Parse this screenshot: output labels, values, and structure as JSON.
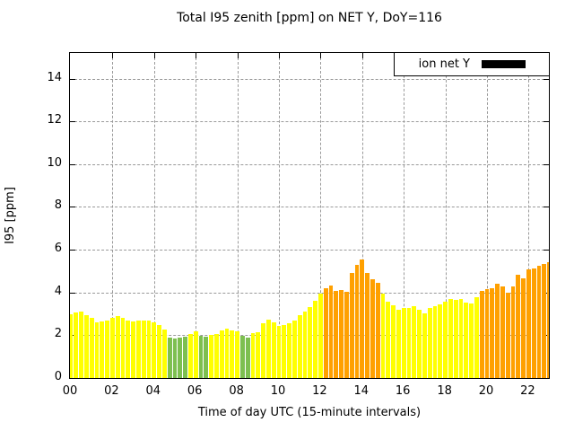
{
  "title": "Total I95 zenith [ppm] on NET Y, DoY=116",
  "legend": {
    "label": "ion net Y",
    "swatch_color": "#000000"
  },
  "axes": {
    "x_label": "Time of day UTC (15-minute intervals)",
    "y_label": "I95 [ppm]",
    "x_tick_labels": [
      "00",
      "02",
      "04",
      "06",
      "08",
      "10",
      "12",
      "14",
      "16",
      "18",
      "20",
      "22"
    ],
    "y_tick_labels": [
      "0",
      "2",
      "4",
      "6",
      "8",
      "10",
      "12",
      "14"
    ]
  },
  "colors": {
    "bar_low": "#7dbf50",
    "bar_mid": "#ffff00",
    "bar_high": "#ffa000",
    "grid": "#9a9a9a",
    "border": "#000000"
  },
  "thresholds": {
    "low_below": 2.0,
    "mid_below": 4.0
  },
  "chart_data": {
    "type": "bar",
    "title": "Total I95 zenith [ppm] on NET Y, DoY=116",
    "xlabel": "Time of day UTC (15-minute intervals)",
    "ylabel": "I95 [ppm]",
    "legend_entries": [
      "ion net Y"
    ],
    "legend_position": "top-right",
    "grid": true,
    "xlim_hours": [
      0,
      23.0
    ],
    "ylim": [
      0,
      15.2
    ],
    "x_step_minutes": 15,
    "x_times": [
      "00:00",
      "00:15",
      "00:30",
      "00:45",
      "01:00",
      "01:15",
      "01:30",
      "01:45",
      "02:00",
      "02:15",
      "02:30",
      "02:45",
      "03:00",
      "03:15",
      "03:30",
      "03:45",
      "04:00",
      "04:15",
      "04:30",
      "04:45",
      "05:00",
      "05:15",
      "05:30",
      "05:45",
      "06:00",
      "06:15",
      "06:30",
      "06:45",
      "07:00",
      "07:15",
      "07:30",
      "07:45",
      "08:00",
      "08:15",
      "08:30",
      "08:45",
      "09:00",
      "09:15",
      "09:30",
      "09:45",
      "10:00",
      "10:15",
      "10:30",
      "10:45",
      "11:00",
      "11:15",
      "11:30",
      "11:45",
      "12:00",
      "12:15",
      "12:30",
      "12:45",
      "13:00",
      "13:15",
      "13:30",
      "13:45",
      "14:00",
      "14:15",
      "14:30",
      "14:45",
      "15:00",
      "15:15",
      "15:30",
      "15:45",
      "16:00",
      "16:15",
      "16:30",
      "16:45",
      "17:00",
      "17:15",
      "17:30",
      "17:45",
      "18:00",
      "18:15",
      "18:30",
      "18:45",
      "19:00",
      "19:15",
      "19:30",
      "19:45",
      "20:00",
      "20:15",
      "20:30",
      "20:45",
      "21:00",
      "21:15",
      "21:30",
      "21:45",
      "22:00",
      "22:15",
      "22:30",
      "22:45",
      "23:00"
    ],
    "values": [
      2.98,
      3.06,
      3.12,
      2.92,
      2.81,
      2.6,
      2.64,
      2.7,
      2.82,
      2.91,
      2.81,
      2.67,
      2.63,
      2.68,
      2.7,
      2.69,
      2.6,
      2.49,
      2.25,
      1.9,
      1.86,
      1.9,
      1.93,
      2.04,
      2.2,
      1.97,
      1.93,
      2.02,
      2.07,
      2.24,
      2.29,
      2.24,
      2.18,
      1.96,
      1.9,
      2.11,
      2.15,
      2.55,
      2.72,
      2.6,
      2.42,
      2.46,
      2.56,
      2.7,
      2.92,
      3.09,
      3.3,
      3.62,
      3.95,
      4.2,
      4.32,
      4.09,
      4.1,
      4.02,
      4.9,
      5.29,
      5.55,
      4.93,
      4.6,
      4.45,
      3.93,
      3.56,
      3.4,
      3.2,
      3.28,
      3.28,
      3.34,
      3.2,
      3.02,
      3.26,
      3.37,
      3.44,
      3.56,
      3.7,
      3.67,
      3.7,
      3.51,
      3.48,
      3.76,
      4.09,
      4.14,
      4.18,
      4.41,
      4.3,
      4.0,
      4.3,
      4.83,
      4.65,
      5.07,
      5.11,
      5.25,
      5.32,
      5.4
    ],
    "color_rule": "value < 2 green, 2 <= value < 4 yellow, value >= 4 orange"
  }
}
